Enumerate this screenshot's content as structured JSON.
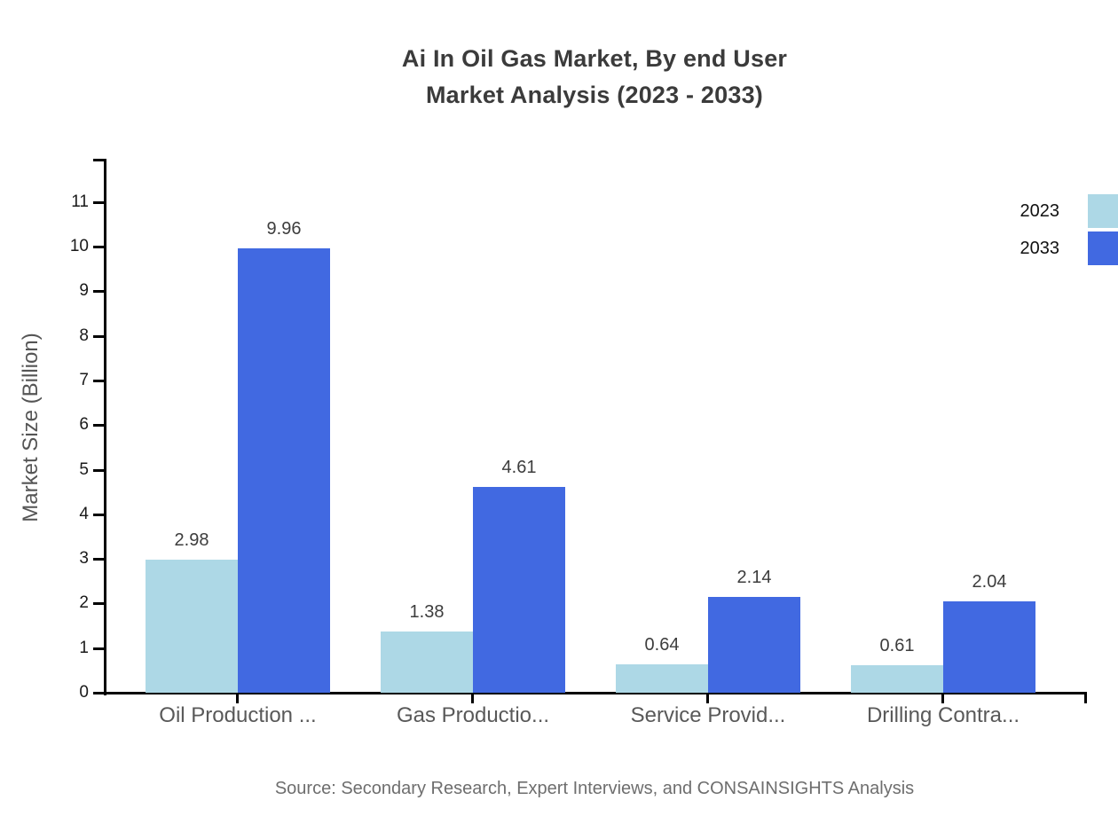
{
  "title": {
    "line1": "Ai In Oil Gas Market, By end User",
    "line2": "Market Analysis (2023 - 2033)"
  },
  "chart_data": {
    "type": "bar",
    "title": "Ai In Oil Gas Market, By end User Market Analysis (2023 - 2033)",
    "categories": [
      "Oil Production ...",
      "Gas Productio...",
      "Service Provid...",
      "Drilling Contra..."
    ],
    "series": [
      {
        "name": "2023",
        "color": "#ADD8E6",
        "values": [
          2.98,
          1.38,
          0.64,
          0.61
        ]
      },
      {
        "name": "2033",
        "color": "#4169E1",
        "values": [
          9.96,
          4.61,
          2.14,
          2.04
        ]
      }
    ],
    "xlabel": "",
    "ylabel": "Market Size (Billion)",
    "ylim": [
      0,
      11
    ],
    "yticks": [
      0,
      1,
      2,
      3,
      4,
      5,
      6,
      7,
      8,
      9,
      10,
      11
    ],
    "grid": false,
    "legend_position": "top-right",
    "value_labels": true
  },
  "source": "Source: Secondary Research, Expert Interviews, and CONSAINSIGHTS Analysis",
  "colors": {
    "axis": "#000000",
    "title_text": "#3b3b3b",
    "tick_label_text": "#1a1a1a",
    "category_label_text": "#595959",
    "value_label_text": "#3d3d3d",
    "source_text": "#6e6e6e",
    "series_2023": "#ADD8E6",
    "series_2033": "#4169E1",
    "background": "#ffffff"
  }
}
